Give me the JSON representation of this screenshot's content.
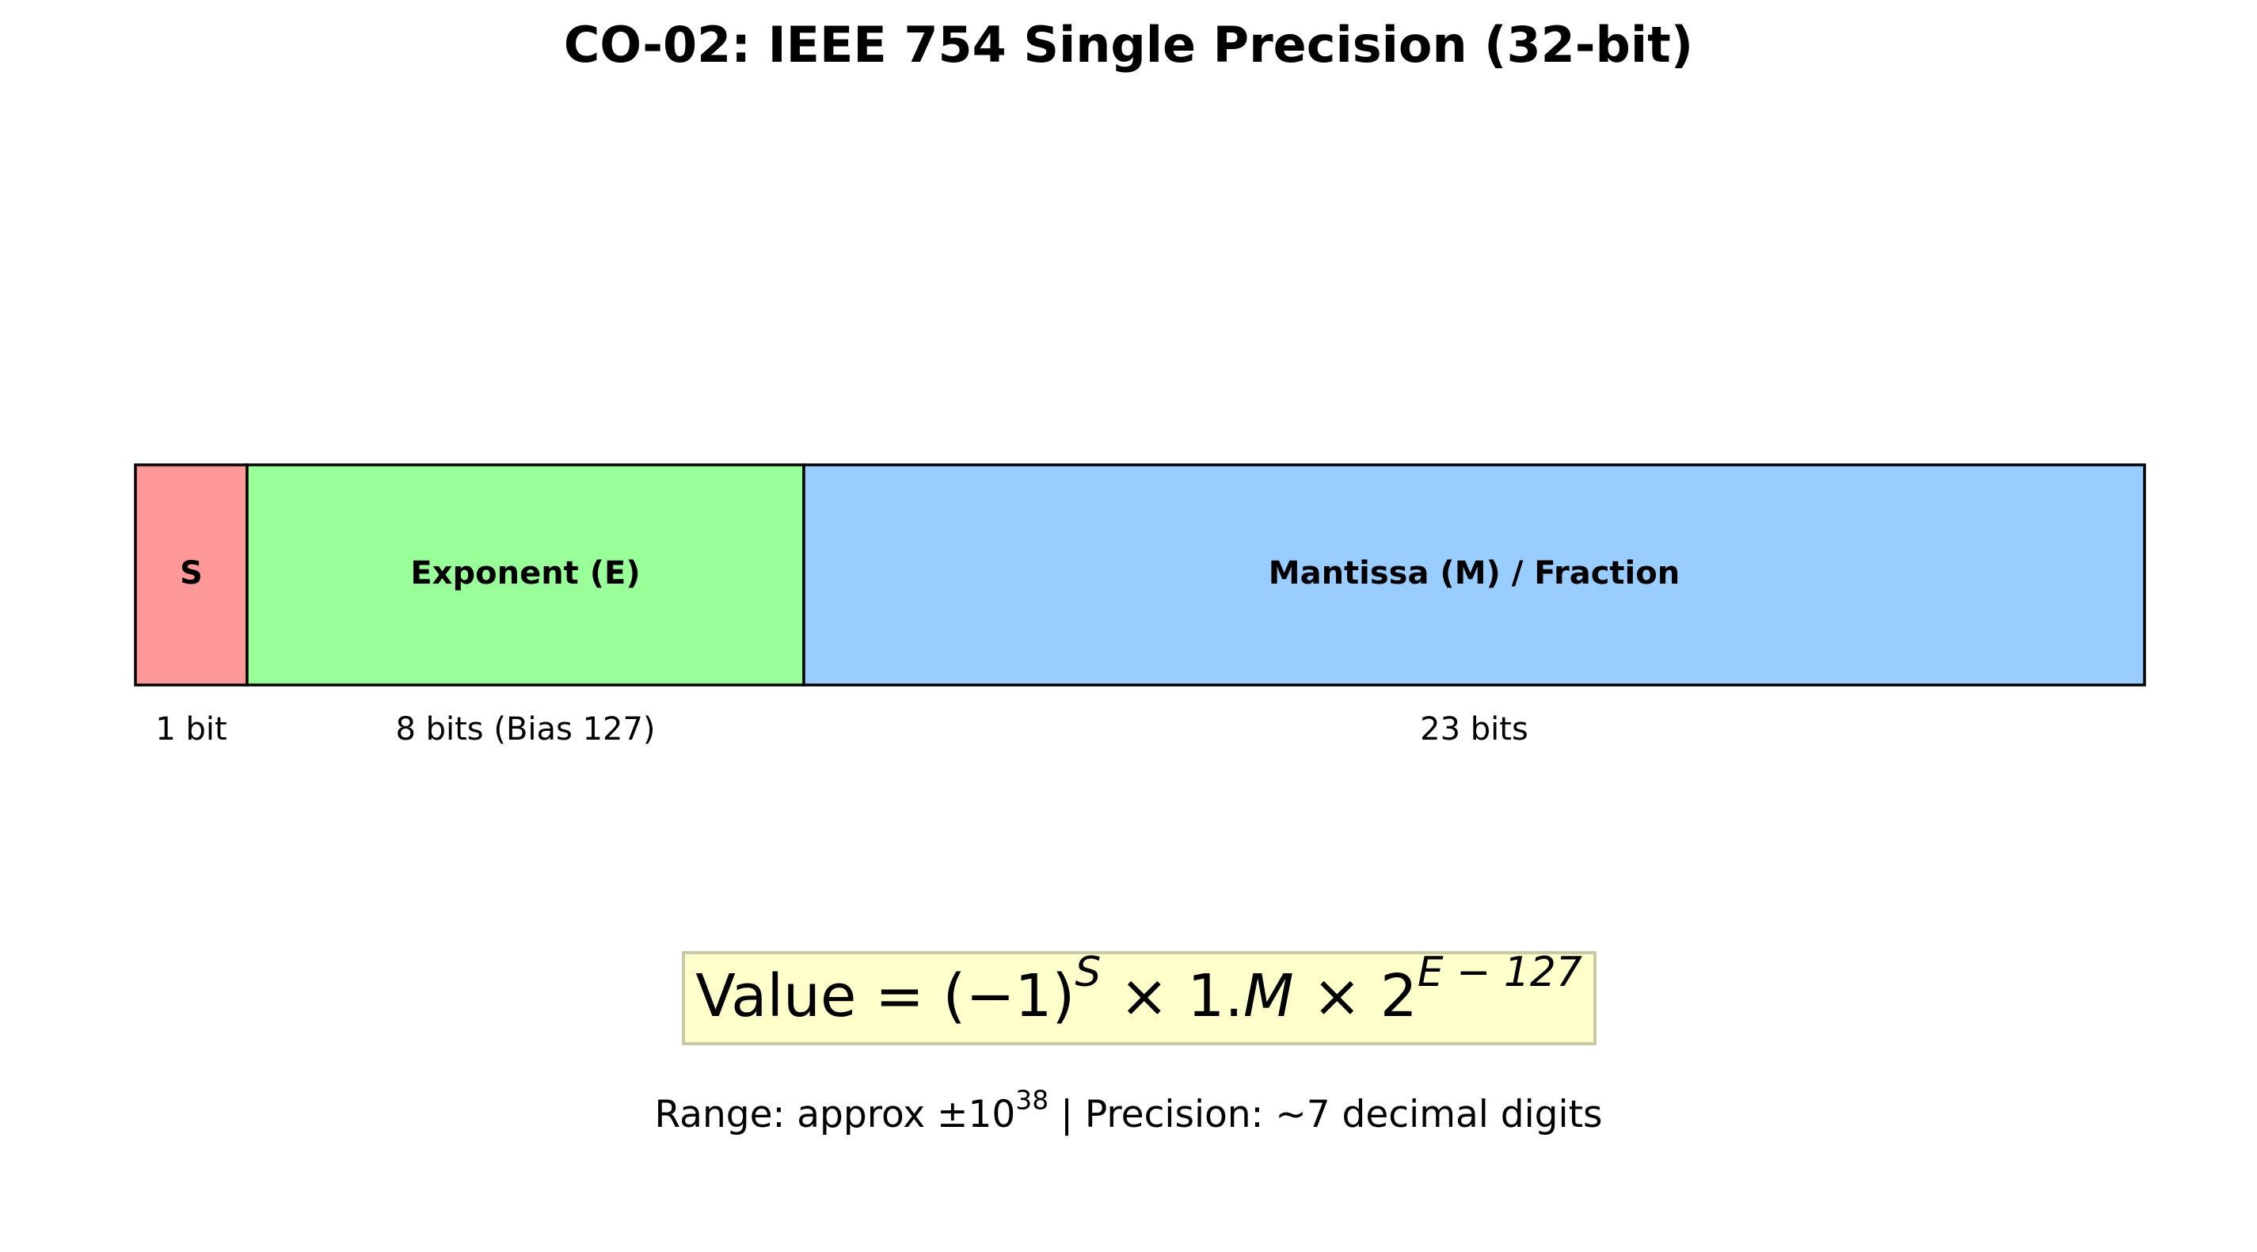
{
  "title": "CO-02: IEEE 754 Single Precision (32-bit)",
  "fields": [
    {
      "label": "S",
      "bits": "1 bit",
      "color": "#ff9999"
    },
    {
      "label": "Exponent (E)",
      "bits": "8 bits (Bias 127)",
      "color": "#99ff99"
    },
    {
      "label": "Mantissa (M) / Fraction",
      "bits": "23 bits",
      "color": "#99ccff"
    }
  ],
  "formula": [
    {
      "text": "Value = (−1)"
    },
    {
      "text": "S",
      "sup": true,
      "italic": true
    },
    {
      "text": " × 1."
    },
    {
      "text": "M",
      "italic": true
    },
    {
      "text": " × 2"
    },
    {
      "text": "E − 127",
      "sup": true,
      "italic": true
    }
  ],
  "note": [
    {
      "text": "Range: approx ±10"
    },
    {
      "text": "38",
      "sup": true
    },
    {
      "text": " | Precision: ~7 decimal digits"
    }
  ]
}
